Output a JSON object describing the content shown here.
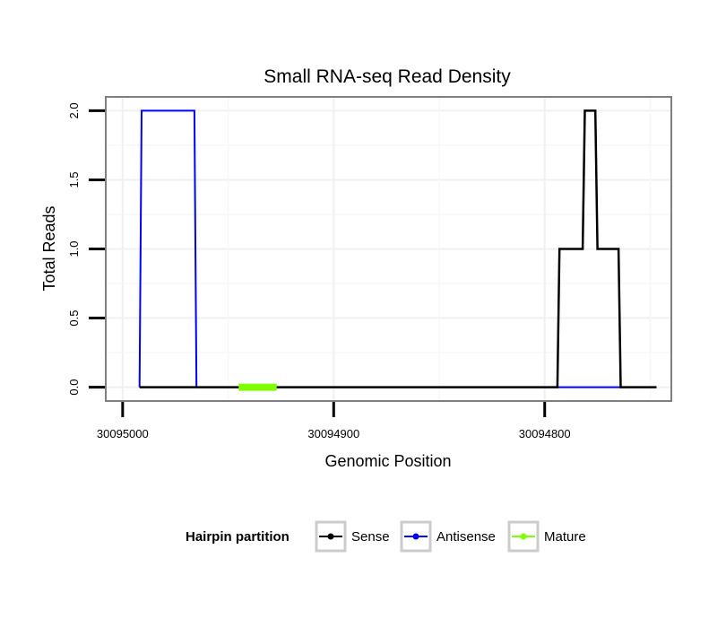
{
  "chart_data": {
    "type": "line",
    "title": "Small RNA-seq Read Density",
    "xlabel": "Genomic Position",
    "ylabel": "Total Reads",
    "x_reversed": true,
    "xlim": [
      30095008,
      30094740
    ],
    "ylim": [
      -0.1,
      2.1
    ],
    "x_ticks": [
      30095000,
      30094900,
      30094800
    ],
    "x_tick_labels": [
      "30095000",
      "30094900",
      "30094800"
    ],
    "y_ticks": [
      0,
      0.5,
      1,
      1.5,
      2
    ],
    "y_tick_labels": [
      "0.0",
      "0.5",
      "1.0",
      "1.5",
      "2.0"
    ],
    "grid": true,
    "legend": {
      "title": "Hairpin partition",
      "position": "bottom",
      "entries": [
        "Sense",
        "Antisense",
        "Mature"
      ]
    },
    "colors": {
      "Sense": "#000000",
      "Antisense": "#0000ff",
      "Mature": "#7fff00"
    },
    "series": [
      {
        "name": "Antisense",
        "points": [
          [
            30094992,
            0
          ],
          [
            30094992,
            0
          ],
          [
            30094991,
            2
          ],
          [
            30094966,
            2
          ],
          [
            30094965,
            0
          ],
          [
            30094800,
            0
          ],
          [
            30094760,
            0
          ]
        ]
      },
      {
        "name": "Sense",
        "points": [
          [
            30094992,
            0
          ],
          [
            30094794,
            0
          ],
          [
            30094793,
            1
          ],
          [
            30094782,
            1
          ],
          [
            30094781,
            2
          ],
          [
            30094776,
            2
          ],
          [
            30094775,
            1
          ],
          [
            30094765,
            1
          ],
          [
            30094764,
            0
          ],
          [
            30094747,
            0
          ]
        ]
      },
      {
        "name": "Mature",
        "points": [
          [
            30094945,
            0
          ],
          [
            30094927,
            0
          ]
        ]
      }
    ]
  }
}
